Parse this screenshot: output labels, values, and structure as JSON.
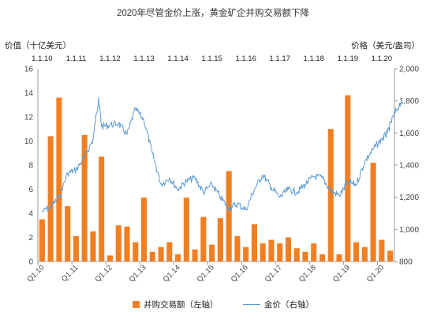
{
  "chart_data": {
    "type": "bar+line",
    "title": "2020年尽管金价上涨，黄金矿企并购交易额下降",
    "ylabel_left": "价值（十亿美元）",
    "ylabel_right": "价格（美元/盎司）",
    "ylim_left": [
      0,
      16
    ],
    "ylim_right": [
      800,
      2000
    ],
    "yticks_left": [
      "0",
      "2",
      "4",
      "6",
      "8",
      "10",
      "12",
      "14",
      "16"
    ],
    "yticks_right": [
      "800",
      "1,000",
      "1,200",
      "1,400",
      "1,600",
      "1,800",
      "2,000"
    ],
    "top_axis_labels": [
      "1.1.10",
      "1.1.11",
      "1.1.12",
      "1.1.13",
      "1.1.14",
      "1.1.15",
      "1.1.16",
      "1.1.17",
      "1.1.18",
      "1.1.19",
      "1.1.20"
    ],
    "bottom_axis_labels": [
      "Q1.10",
      "Q1.11",
      "Q1.12",
      "Q1.13",
      "Q1.14",
      "Q1.15",
      "Q1.16",
      "Q1.17",
      "Q1.18",
      "Q1.19",
      "Q1.20"
    ],
    "legend_position": "bottom",
    "series": [
      {
        "name": "并购交易额（左轴）",
        "type": "bar",
        "axis": "left",
        "color": "#F07F24",
        "values": [
          3.5,
          10.4,
          13.6,
          4.6,
          2.1,
          10.5,
          2.5,
          8.7,
          0.5,
          3.0,
          2.9,
          1.6,
          5.3,
          0.8,
          1.2,
          1.6,
          0.6,
          5.3,
          1.0,
          3.7,
          1.4,
          3.6,
          7.5,
          2.1,
          1.2,
          3.1,
          1.5,
          1.8,
          1.5,
          2.0,
          1.1,
          0.8,
          1.5,
          0.6,
          11.0,
          0.6,
          13.8,
          1.6,
          1.2,
          8.2,
          1.8,
          0.9
        ]
      },
      {
        "name": "金价（右轴）",
        "type": "line",
        "axis": "right",
        "color": "#5B9BD5",
        "x": [
          "2010-01",
          "2010-04",
          "2010-07",
          "2010-10",
          "2011-01",
          "2011-04",
          "2011-07",
          "2011-09",
          "2011-10",
          "2012-01",
          "2012-04",
          "2012-07",
          "2012-10",
          "2013-01",
          "2013-04",
          "2013-07",
          "2013-10",
          "2014-01",
          "2014-04",
          "2014-07",
          "2014-10",
          "2015-01",
          "2015-04",
          "2015-07",
          "2015-10",
          "2016-01",
          "2016-04",
          "2016-07",
          "2016-10",
          "2017-01",
          "2017-04",
          "2017-07",
          "2017-10",
          "2018-01",
          "2018-04",
          "2018-07",
          "2018-10",
          "2019-01",
          "2019-04",
          "2019-07",
          "2019-10",
          "2020-01",
          "2020-03",
          "2020-05",
          "2020-08"
        ],
        "values": [
          1110,
          1140,
          1200,
          1350,
          1370,
          1450,
          1560,
          1820,
          1640,
          1650,
          1660,
          1590,
          1750,
          1680,
          1470,
          1280,
          1320,
          1250,
          1300,
          1320,
          1230,
          1280,
          1200,
          1130,
          1160,
          1120,
          1250,
          1340,
          1260,
          1200,
          1250,
          1230,
          1280,
          1330,
          1320,
          1240,
          1210,
          1290,
          1280,
          1420,
          1500,
          1560,
          1600,
          1700,
          1800
        ]
      }
    ]
  }
}
